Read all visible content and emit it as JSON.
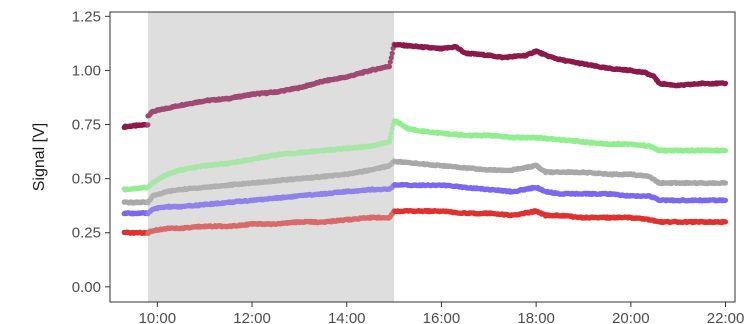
{
  "chart_data": {
    "type": "scatter",
    "title": "",
    "xlabel": "",
    "ylabel": "Signal [V]",
    "xlim": [
      9.0,
      22.2
    ],
    "ylim": [
      -0.07,
      1.27
    ],
    "x_ticks": [
      10,
      12,
      14,
      16,
      18,
      20,
      22
    ],
    "x_tick_labels": [
      "10:00",
      "12:00",
      "14:00",
      "16:00",
      "18:00",
      "20:00",
      "22:00"
    ],
    "y_ticks": [
      0.0,
      0.25,
      0.5,
      0.75,
      1.0,
      1.25
    ],
    "y_tick_labels": [
      "0.00",
      "0.25",
      "0.50",
      "0.75",
      "1.00",
      "1.25"
    ],
    "grid": false,
    "legend": "none",
    "shaded_region": {
      "x_start": 9.8,
      "x_end": 15.0,
      "color": "#dedede"
    },
    "series": [
      {
        "color": "#8b1a4a",
        "shaded_color": "#9e4a72",
        "points": [
          [
            9.3,
            0.74
          ],
          [
            9.8,
            0.75
          ],
          [
            9.8,
            0.79
          ],
          [
            9.9,
            0.81
          ],
          [
            10.5,
            0.84
          ],
          [
            11.0,
            0.86
          ],
          [
            11.5,
            0.87
          ],
          [
            12.0,
            0.89
          ],
          [
            12.5,
            0.9
          ],
          [
            13.0,
            0.92
          ],
          [
            13.5,
            0.95
          ],
          [
            14.0,
            0.97
          ],
          [
            14.5,
            1.0
          ],
          [
            14.9,
            1.02
          ],
          [
            15.0,
            1.12
          ],
          [
            15.5,
            1.11
          ],
          [
            16.0,
            1.1
          ],
          [
            16.3,
            1.11
          ],
          [
            16.5,
            1.08
          ],
          [
            17.0,
            1.07
          ],
          [
            17.3,
            1.06
          ],
          [
            17.8,
            1.07
          ],
          [
            18.0,
            1.09
          ],
          [
            18.2,
            1.07
          ],
          [
            18.5,
            1.05
          ],
          [
            19.0,
            1.03
          ],
          [
            19.5,
            1.01
          ],
          [
            20.0,
            1.0
          ],
          [
            20.3,
            0.99
          ],
          [
            20.5,
            0.97
          ],
          [
            20.6,
            0.94
          ],
          [
            21.0,
            0.93
          ],
          [
            21.5,
            0.94
          ],
          [
            22.0,
            0.94
          ]
        ]
      },
      {
        "color": "#90ee90",
        "shaded_color": "#a8e6a8",
        "points": [
          [
            9.3,
            0.45
          ],
          [
            9.8,
            0.46
          ],
          [
            9.9,
            0.48
          ],
          [
            10.2,
            0.52
          ],
          [
            10.5,
            0.54
          ],
          [
            11.0,
            0.56
          ],
          [
            11.5,
            0.57
          ],
          [
            12.0,
            0.59
          ],
          [
            12.5,
            0.61
          ],
          [
            13.0,
            0.62
          ],
          [
            13.5,
            0.63
          ],
          [
            14.0,
            0.64
          ],
          [
            14.5,
            0.65
          ],
          [
            14.9,
            0.67
          ],
          [
            15.0,
            0.77
          ],
          [
            15.3,
            0.73
          ],
          [
            15.6,
            0.72
          ],
          [
            16.0,
            0.71
          ],
          [
            16.5,
            0.7
          ],
          [
            17.0,
            0.7
          ],
          [
            17.5,
            0.69
          ],
          [
            18.0,
            0.69
          ],
          [
            18.5,
            0.68
          ],
          [
            19.0,
            0.67
          ],
          [
            19.5,
            0.66
          ],
          [
            20.0,
            0.66
          ],
          [
            20.4,
            0.65
          ],
          [
            20.6,
            0.63
          ],
          [
            21.0,
            0.63
          ],
          [
            21.5,
            0.63
          ],
          [
            22.0,
            0.63
          ]
        ]
      },
      {
        "color": "#a8a8a8",
        "shaded_color": "#b0b0b0",
        "points": [
          [
            9.3,
            0.39
          ],
          [
            9.8,
            0.39
          ],
          [
            9.9,
            0.42
          ],
          [
            10.2,
            0.44
          ],
          [
            10.5,
            0.45
          ],
          [
            11.0,
            0.46
          ],
          [
            11.5,
            0.47
          ],
          [
            12.0,
            0.48
          ],
          [
            12.5,
            0.49
          ],
          [
            13.0,
            0.5
          ],
          [
            13.5,
            0.51
          ],
          [
            14.0,
            0.52
          ],
          [
            14.5,
            0.54
          ],
          [
            14.9,
            0.56
          ],
          [
            15.0,
            0.58
          ],
          [
            15.5,
            0.57
          ],
          [
            16.0,
            0.56
          ],
          [
            16.5,
            0.55
          ],
          [
            17.0,
            0.54
          ],
          [
            17.5,
            0.54
          ],
          [
            18.0,
            0.56
          ],
          [
            18.2,
            0.53
          ],
          [
            18.5,
            0.53
          ],
          [
            19.0,
            0.53
          ],
          [
            19.5,
            0.52
          ],
          [
            20.0,
            0.52
          ],
          [
            20.4,
            0.51
          ],
          [
            20.6,
            0.48
          ],
          [
            21.0,
            0.48
          ],
          [
            21.5,
            0.48
          ],
          [
            22.0,
            0.48
          ]
        ]
      },
      {
        "color": "#7b68ee",
        "shaded_color": "#8f82e8",
        "points": [
          [
            9.3,
            0.34
          ],
          [
            9.8,
            0.34
          ],
          [
            9.9,
            0.36
          ],
          [
            10.2,
            0.37
          ],
          [
            10.5,
            0.37
          ],
          [
            11.0,
            0.38
          ],
          [
            11.5,
            0.39
          ],
          [
            12.0,
            0.4
          ],
          [
            12.5,
            0.41
          ],
          [
            13.0,
            0.42
          ],
          [
            13.5,
            0.43
          ],
          [
            14.0,
            0.44
          ],
          [
            14.5,
            0.45
          ],
          [
            14.9,
            0.45
          ],
          [
            15.0,
            0.47
          ],
          [
            15.5,
            0.47
          ],
          [
            16.0,
            0.47
          ],
          [
            16.5,
            0.46
          ],
          [
            17.0,
            0.45
          ],
          [
            17.5,
            0.44
          ],
          [
            18.0,
            0.46
          ],
          [
            18.2,
            0.44
          ],
          [
            18.5,
            0.43
          ],
          [
            19.0,
            0.43
          ],
          [
            19.5,
            0.43
          ],
          [
            20.0,
            0.42
          ],
          [
            20.4,
            0.42
          ],
          [
            20.6,
            0.4
          ],
          [
            21.0,
            0.4
          ],
          [
            21.5,
            0.4
          ],
          [
            22.0,
            0.4
          ]
        ]
      },
      {
        "color": "#e03030",
        "shaded_color": "#d96a6a",
        "points": [
          [
            9.3,
            0.25
          ],
          [
            9.8,
            0.25
          ],
          [
            9.9,
            0.26
          ],
          [
            10.2,
            0.27
          ],
          [
            10.5,
            0.27
          ],
          [
            11.0,
            0.28
          ],
          [
            11.5,
            0.28
          ],
          [
            12.0,
            0.29
          ],
          [
            12.5,
            0.29
          ],
          [
            13.0,
            0.3
          ],
          [
            13.5,
            0.3
          ],
          [
            14.0,
            0.31
          ],
          [
            14.5,
            0.32
          ],
          [
            14.9,
            0.32
          ],
          [
            15.0,
            0.35
          ],
          [
            15.5,
            0.35
          ],
          [
            16.0,
            0.35
          ],
          [
            16.5,
            0.34
          ],
          [
            17.0,
            0.34
          ],
          [
            17.5,
            0.33
          ],
          [
            18.0,
            0.35
          ],
          [
            18.2,
            0.33
          ],
          [
            18.5,
            0.33
          ],
          [
            19.0,
            0.32
          ],
          [
            19.5,
            0.32
          ],
          [
            20.0,
            0.32
          ],
          [
            20.4,
            0.31
          ],
          [
            20.6,
            0.3
          ],
          [
            21.0,
            0.3
          ],
          [
            21.5,
            0.3
          ],
          [
            22.0,
            0.3
          ]
        ]
      }
    ]
  }
}
